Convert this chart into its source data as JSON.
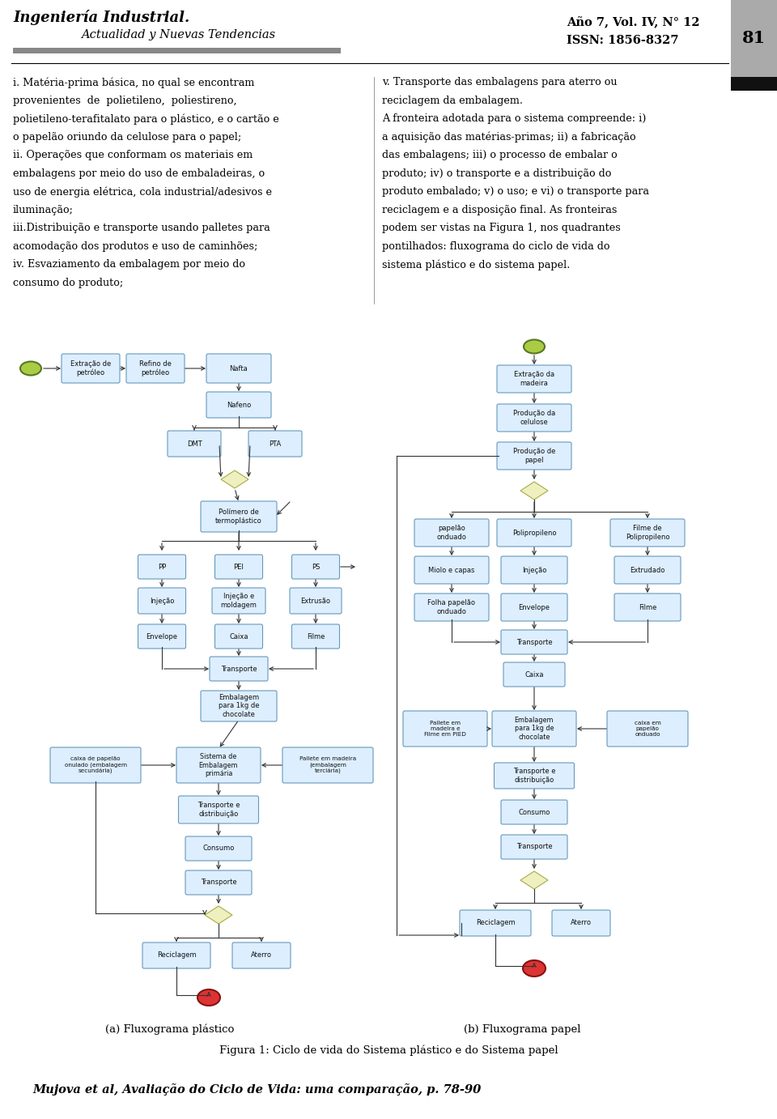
{
  "page_width": 9.6,
  "page_height": 13.82,
  "bg_color": "#ffffff",
  "header": {
    "journal_title": "Ingeniería Industrial.",
    "subtitle": "Actualidad y Nuevas Tendencias",
    "right_top": "Año 7, Vol. IV, N° 12",
    "right_bottom": "ISSN: 1856-8327",
    "page_num": "81"
  },
  "text_left": [
    "i. Matéria-prima básica, no qual se encontram",
    "provenientes  de  polietileno,  poliestireno,",
    "polietileno-terafitalato para o plástico, e o cartão e",
    "o papelão oriundo da celulose para o papel;",
    "ii. Operações que conformam os materiais em",
    "embalagens por meio do uso de embaladeiras, o",
    "uso de energia elétrica, cola industrial/adesivos e",
    "iluminação;",
    "iii.Distribuição e transporte usando palletes para",
    "acomodação dos produtos e uso de caminhões;",
    "iv. Esvaziamento da embalagem por meio do",
    "consumo do produto;"
  ],
  "text_right_line1_bold": "v. Transporte das embalagens para aterro ou",
  "text_right": [
    "v. Transporte das embalagens para aterro ou",
    "reciclagem da embalagem.",
    "A fronteira adotada para o sistema compreende: i)",
    "a aquisição das matérias-primas; ii) a fabricação",
    "das embalagens; iii) o processo de embalar o",
    "produto; iv) o transporte e a distribuição do",
    "produto embalado; v) o uso; e vi) o transporte para",
    "reciclagem e a disposição final. As fronteiras",
    "podem ser vistas na Figura 1, nos quadrantes",
    "pontilhados: fluxograma do ciclo de vida do",
    "sistema plástico e do sistema papel."
  ],
  "caption_a": "(a) Fluxograma plástico",
  "caption_b": "(b) Fluxograma papel",
  "figure_caption": "Figura 1: Ciclo de vida do Sistema plástico e do Sistema papel",
  "footer": "Mujova et al, Avaliação do Ciclo de Vida: uma comparação, p. 78-90",
  "box_fill": "#ddeeff",
  "box_edge": "#6699bb",
  "diamond_fill": "#eef0c0",
  "diamond_edge": "#aaaa44",
  "ellipse_green_fill": "#aacc44",
  "ellipse_green_edge": "#557722",
  "ellipse_red_fill": "#dd3333",
  "ellipse_red_edge": "#881111",
  "arrow_color": "#333333",
  "text_color": "#111111"
}
